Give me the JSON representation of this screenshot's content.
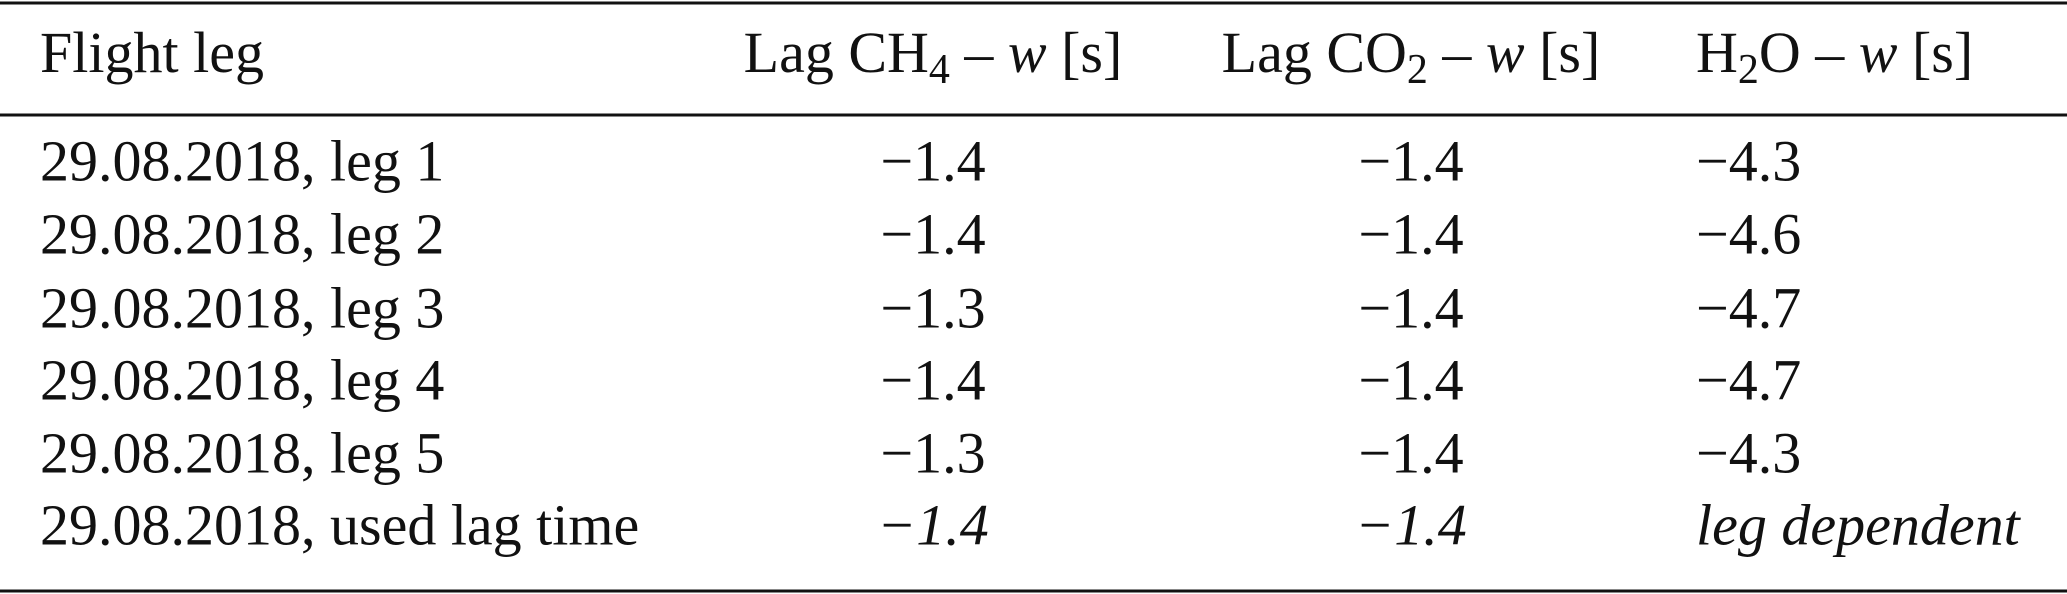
{
  "table": {
    "header": [
      [
        {
          "text": "Flight leg"
        }
      ],
      [
        {
          "text": "Lag CH"
        },
        {
          "text": "4",
          "sub": true
        },
        {
          "text": " – "
        },
        {
          "text": "w",
          "italic": true
        },
        {
          "text": " [s]"
        }
      ],
      [
        {
          "text": "Lag CO"
        },
        {
          "text": "2",
          "sub": true
        },
        {
          "text": " – "
        },
        {
          "text": "w",
          "italic": true
        },
        {
          "text": " [s]"
        }
      ],
      [
        {
          "text": "H"
        },
        {
          "text": "2",
          "sub": true
        },
        {
          "text": "O – "
        },
        {
          "text": "w",
          "italic": true
        },
        {
          "text": " [s]"
        }
      ]
    ],
    "rows": [
      [
        "29.08.2018, leg 1",
        "−1.4",
        "−1.4",
        "−4.3"
      ],
      [
        "29.08.2018, leg 2",
        "−1.4",
        "−1.4",
        "−4.6"
      ],
      [
        "29.08.2018, leg 3",
        "−1.3",
        "−1.4",
        "−4.7"
      ],
      [
        "29.08.2018, leg 4",
        "−1.4",
        "−1.4",
        "−4.7"
      ],
      [
        "29.08.2018, leg 5",
        "−1.3",
        "−1.4",
        "−4.3"
      ]
    ],
    "summary_row": {
      "label": "29.08.2018, used lag time",
      "values": [
        "−1.4",
        "−1.4",
        "leg dependent"
      ],
      "italic": true
    }
  }
}
